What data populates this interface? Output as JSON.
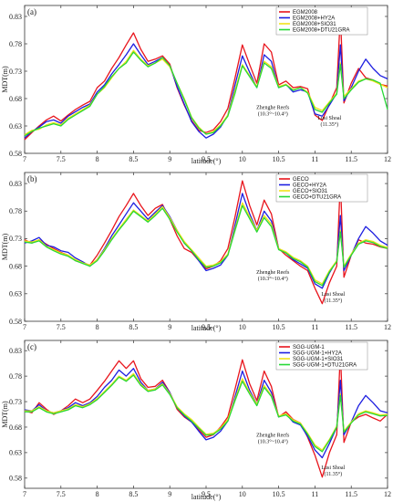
{
  "xlabel": "latitude(°)",
  "ylabel": "MDT(m)",
  "x_ticks": [
    "7",
    "7.5",
    "8",
    "8.5",
    "9",
    "9.5",
    "10",
    "10.5",
    "11",
    "11.5",
    "12"
  ],
  "y_ticks": [
    "0.58",
    "0.63",
    "0.68",
    "0.73",
    "0.78",
    "0.83"
  ],
  "colors": {
    "red": "#e8141c",
    "blue": "#1d1ee0",
    "yellow": "#f2e21a",
    "green": "#26d836"
  },
  "chart_data": [
    {
      "type": "line",
      "panel": "(a)",
      "xlabel": "latitude(°)",
      "ylabel": "MDT(m)",
      "xlim": [
        7,
        12
      ],
      "ylim": [
        0.58,
        0.85
      ],
      "grid": false,
      "legend_position": "top-right",
      "annotations": [
        {
          "text": "Zhenghe Reefs",
          "text2": "(10.3°~10.4°)",
          "x": 10.42,
          "y": 0.661
        },
        {
          "text": "Lusi Shoal",
          "text2": "(11.35°)",
          "x": 11.2,
          "y": 0.642
        }
      ],
      "x": [
        7.0,
        7.1,
        7.2,
        7.3,
        7.4,
        7.5,
        7.6,
        7.7,
        7.8,
        7.9,
        8.0,
        8.1,
        8.2,
        8.3,
        8.4,
        8.5,
        8.6,
        8.7,
        8.8,
        8.9,
        9.0,
        9.1,
        9.2,
        9.3,
        9.4,
        9.5,
        9.6,
        9.7,
        9.8,
        9.9,
        10.0,
        10.1,
        10.2,
        10.3,
        10.4,
        10.5,
        10.6,
        10.7,
        10.8,
        10.9,
        11.0,
        11.1,
        11.2,
        11.3,
        11.35,
        11.4,
        11.5,
        11.6,
        11.7,
        11.8,
        11.9,
        12.0
      ],
      "series": [
        {
          "name": "EGM2008",
          "color": "#e8141c",
          "values": [
            0.605,
            0.618,
            0.63,
            0.641,
            0.648,
            0.639,
            0.65,
            0.66,
            0.668,
            0.675,
            0.7,
            0.712,
            0.735,
            0.755,
            0.778,
            0.8,
            0.77,
            0.748,
            0.752,
            0.758,
            0.743,
            0.7,
            0.668,
            0.64,
            0.622,
            0.618,
            0.623,
            0.638,
            0.662,
            0.718,
            0.778,
            0.742,
            0.708,
            0.78,
            0.765,
            0.705,
            0.712,
            0.7,
            0.702,
            0.698,
            0.65,
            0.64,
            0.67,
            0.7,
            0.832,
            0.672,
            0.708,
            0.735,
            0.718,
            0.714,
            0.706,
            0.703
          ]
        },
        {
          "name": "EGM2008+HY2A",
          "color": "#1d1ee0",
          "values": [
            0.608,
            0.62,
            0.628,
            0.638,
            0.641,
            0.635,
            0.648,
            0.656,
            0.664,
            0.67,
            0.692,
            0.705,
            0.725,
            0.742,
            0.76,
            0.78,
            0.76,
            0.742,
            0.748,
            0.755,
            0.74,
            0.702,
            0.67,
            0.638,
            0.62,
            0.608,
            0.615,
            0.628,
            0.65,
            0.705,
            0.758,
            0.728,
            0.7,
            0.76,
            0.748,
            0.7,
            0.706,
            0.692,
            0.696,
            0.692,
            0.652,
            0.648,
            0.668,
            0.69,
            0.778,
            0.676,
            0.7,
            0.73,
            0.752,
            0.735,
            0.722,
            0.716
          ]
        },
        {
          "name": "EGM2008+SIO31",
          "color": "#f2e21a",
          "values": [
            0.614,
            0.622,
            0.624,
            0.632,
            0.636,
            0.632,
            0.644,
            0.652,
            0.66,
            0.668,
            0.688,
            0.7,
            0.718,
            0.735,
            0.748,
            0.768,
            0.752,
            0.74,
            0.745,
            0.752,
            0.738,
            0.708,
            0.68,
            0.646,
            0.628,
            0.615,
            0.62,
            0.632,
            0.65,
            0.695,
            0.742,
            0.722,
            0.702,
            0.748,
            0.738,
            0.702,
            0.706,
            0.696,
            0.7,
            0.692,
            0.664,
            0.658,
            0.674,
            0.69,
            0.745,
            0.684,
            0.698,
            0.712,
            0.716,
            0.712,
            0.706,
            0.7
          ]
        },
        {
          "name": "EGM2008+DTU21GRA",
          "color": "#26d836",
          "values": [
            0.612,
            0.62,
            0.626,
            0.63,
            0.634,
            0.63,
            0.642,
            0.65,
            0.658,
            0.666,
            0.688,
            0.702,
            0.72,
            0.735,
            0.745,
            0.765,
            0.75,
            0.738,
            0.745,
            0.755,
            0.74,
            0.708,
            0.678,
            0.645,
            0.626,
            0.615,
            0.618,
            0.63,
            0.648,
            0.69,
            0.74,
            0.72,
            0.7,
            0.745,
            0.735,
            0.7,
            0.705,
            0.695,
            0.7,
            0.69,
            0.66,
            0.655,
            0.672,
            0.688,
            0.742,
            0.68,
            0.696,
            0.71,
            0.716,
            0.714,
            0.708,
            0.66
          ]
        }
      ]
    },
    {
      "type": "line",
      "panel": "(b)",
      "xlabel": "latitude(°)",
      "ylabel": "MDT(m)",
      "xlim": [
        7,
        12
      ],
      "ylim": [
        0.58,
        0.85
      ],
      "grid": false,
      "legend_position": "top-right",
      "annotations": [
        {
          "text": "Zhenghe Reefs",
          "text2": "(10.3°~10.4°)",
          "x": 10.42,
          "y": 0.666
        },
        {
          "text": "Lusi Shoal",
          "text2": "(11.35°)",
          "x": 11.25,
          "y": 0.626
        }
      ],
      "x": [
        7.0,
        7.1,
        7.2,
        7.3,
        7.4,
        7.5,
        7.6,
        7.7,
        7.8,
        7.9,
        8.0,
        8.1,
        8.2,
        8.3,
        8.4,
        8.5,
        8.6,
        8.7,
        8.8,
        8.9,
        9.0,
        9.1,
        9.2,
        9.3,
        9.4,
        9.5,
        9.6,
        9.7,
        9.8,
        9.9,
        10.0,
        10.1,
        10.2,
        10.3,
        10.4,
        10.5,
        10.6,
        10.7,
        10.8,
        10.9,
        11.0,
        11.1,
        11.2,
        11.3,
        11.35,
        11.4,
        11.5,
        11.6,
        11.7,
        11.8,
        11.9,
        12.0
      ],
      "series": [
        {
          "name": "GECO",
          "color": "#e8141c",
          "values": [
            0.728,
            0.722,
            0.728,
            0.72,
            0.712,
            0.705,
            0.7,
            0.69,
            0.686,
            0.682,
            0.7,
            0.722,
            0.745,
            0.77,
            0.79,
            0.812,
            0.79,
            0.772,
            0.785,
            0.792,
            0.765,
            0.735,
            0.712,
            0.705,
            0.69,
            0.675,
            0.68,
            0.69,
            0.712,
            0.77,
            0.835,
            0.79,
            0.755,
            0.8,
            0.775,
            0.712,
            0.7,
            0.69,
            0.68,
            0.672,
            0.64,
            0.612,
            0.65,
            0.68,
            0.835,
            0.66,
            0.7,
            0.728,
            0.722,
            0.72,
            0.715,
            0.712
          ]
        },
        {
          "name": "GECO+HY2A",
          "color": "#1d1ee0",
          "values": [
            0.722,
            0.726,
            0.732,
            0.718,
            0.715,
            0.708,
            0.705,
            0.695,
            0.688,
            0.68,
            0.692,
            0.712,
            0.735,
            0.755,
            0.775,
            0.795,
            0.78,
            0.765,
            0.778,
            0.79,
            0.77,
            0.745,
            0.722,
            0.708,
            0.69,
            0.672,
            0.676,
            0.682,
            0.7,
            0.755,
            0.812,
            0.775,
            0.745,
            0.78,
            0.762,
            0.712,
            0.704,
            0.692,
            0.684,
            0.676,
            0.648,
            0.64,
            0.668,
            0.69,
            0.772,
            0.672,
            0.7,
            0.73,
            0.752,
            0.74,
            0.726,
            0.718
          ]
        },
        {
          "name": "GECO+SIO31",
          "color": "#f2e21a",
          "values": [
            0.726,
            0.724,
            0.728,
            0.716,
            0.71,
            0.704,
            0.7,
            0.692,
            0.686,
            0.682,
            0.692,
            0.71,
            0.73,
            0.748,
            0.765,
            0.782,
            0.772,
            0.762,
            0.775,
            0.788,
            0.768,
            0.745,
            0.725,
            0.71,
            0.695,
            0.68,
            0.682,
            0.688,
            0.702,
            0.748,
            0.795,
            0.77,
            0.745,
            0.772,
            0.756,
            0.712,
            0.706,
            0.696,
            0.69,
            0.68,
            0.655,
            0.648,
            0.672,
            0.69,
            0.745,
            0.68,
            0.702,
            0.722,
            0.728,
            0.725,
            0.718,
            0.714
          ]
        },
        {
          "name": "GECO+DTU21GRA",
          "color": "#26d836",
          "values": [
            0.724,
            0.722,
            0.726,
            0.715,
            0.708,
            0.702,
            0.698,
            0.69,
            0.685,
            0.68,
            0.69,
            0.708,
            0.728,
            0.746,
            0.762,
            0.78,
            0.77,
            0.76,
            0.772,
            0.785,
            0.765,
            0.742,
            0.722,
            0.708,
            0.692,
            0.678,
            0.68,
            0.686,
            0.7,
            0.745,
            0.79,
            0.766,
            0.742,
            0.768,
            0.752,
            0.71,
            0.704,
            0.694,
            0.688,
            0.678,
            0.652,
            0.645,
            0.67,
            0.688,
            0.742,
            0.678,
            0.7,
            0.72,
            0.726,
            0.723,
            0.716,
            0.712
          ]
        }
      ]
    },
    {
      "type": "line",
      "panel": "(c)",
      "xlabel": "latitude(°)",
      "ylabel": "MDT(m)",
      "xlim": [
        7,
        12
      ],
      "ylim": [
        0.56,
        0.85
      ],
      "grid": false,
      "legend_position": "top-right",
      "annotations": [
        {
          "text": "Zhenghe Reefs",
          "text2": "(10.3°~10.4°)",
          "x": 10.42,
          "y": 0.661
        },
        {
          "text": "Lusi Shoal",
          "text2": "(11.35°)",
          "x": 11.25,
          "y": 0.598
        }
      ],
      "x": [
        7.0,
        7.1,
        7.2,
        7.3,
        7.4,
        7.5,
        7.6,
        7.7,
        7.8,
        7.9,
        8.0,
        8.1,
        8.2,
        8.3,
        8.4,
        8.5,
        8.6,
        8.7,
        8.8,
        8.9,
        9.0,
        9.1,
        9.2,
        9.3,
        9.4,
        9.5,
        9.6,
        9.7,
        9.8,
        9.9,
        10.0,
        10.1,
        10.2,
        10.3,
        10.4,
        10.5,
        10.6,
        10.7,
        10.8,
        10.9,
        11.0,
        11.1,
        11.2,
        11.3,
        11.35,
        11.4,
        11.5,
        11.6,
        11.7,
        11.8,
        11.9,
        12.0
      ],
      "series": [
        {
          "name": "SGG-UGM-1",
          "color": "#e8141c",
          "values": [
            0.712,
            0.708,
            0.728,
            0.715,
            0.705,
            0.712,
            0.722,
            0.735,
            0.728,
            0.735,
            0.752,
            0.77,
            0.79,
            0.81,
            0.795,
            0.81,
            0.775,
            0.758,
            0.76,
            0.772,
            0.748,
            0.715,
            0.7,
            0.69,
            0.675,
            0.66,
            0.665,
            0.68,
            0.7,
            0.755,
            0.812,
            0.765,
            0.732,
            0.79,
            0.76,
            0.7,
            0.71,
            0.695,
            0.688,
            0.66,
            0.625,
            0.582,
            0.63,
            0.665,
            0.826,
            0.65,
            0.69,
            0.7,
            0.705,
            0.698,
            0.692,
            0.705
          ]
        },
        {
          "name": "SGG-UGM-1+HY2A",
          "color": "#1d1ee0",
          "values": [
            0.714,
            0.712,
            0.724,
            0.712,
            0.708,
            0.712,
            0.718,
            0.728,
            0.722,
            0.728,
            0.74,
            0.758,
            0.772,
            0.792,
            0.78,
            0.795,
            0.768,
            0.752,
            0.755,
            0.768,
            0.748,
            0.718,
            0.702,
            0.69,
            0.672,
            0.655,
            0.66,
            0.672,
            0.692,
            0.74,
            0.79,
            0.752,
            0.725,
            0.772,
            0.748,
            0.7,
            0.706,
            0.69,
            0.684,
            0.662,
            0.635,
            0.62,
            0.648,
            0.68,
            0.772,
            0.665,
            0.69,
            0.722,
            0.742,
            0.728,
            0.712,
            0.708
          ]
        },
        {
          "name": "SGG-UGM-1+SIO31",
          "color": "#f2e21a",
          "values": [
            0.712,
            0.712,
            0.72,
            0.712,
            0.708,
            0.712,
            0.716,
            0.724,
            0.72,
            0.726,
            0.736,
            0.75,
            0.764,
            0.78,
            0.772,
            0.785,
            0.764,
            0.752,
            0.755,
            0.765,
            0.746,
            0.72,
            0.706,
            0.695,
            0.68,
            0.666,
            0.668,
            0.678,
            0.695,
            0.735,
            0.775,
            0.748,
            0.725,
            0.762,
            0.742,
            0.702,
            0.706,
            0.694,
            0.688,
            0.668,
            0.645,
            0.635,
            0.656,
            0.682,
            0.745,
            0.672,
            0.69,
            0.706,
            0.712,
            0.708,
            0.704,
            0.705
          ]
        },
        {
          "name": "SGG-UGM-1+DTU21GRA",
          "color": "#26d836",
          "values": [
            0.71,
            0.71,
            0.718,
            0.71,
            0.706,
            0.71,
            0.714,
            0.722,
            0.718,
            0.724,
            0.734,
            0.748,
            0.762,
            0.778,
            0.77,
            0.782,
            0.762,
            0.75,
            0.753,
            0.763,
            0.744,
            0.718,
            0.704,
            0.692,
            0.678,
            0.664,
            0.666,
            0.676,
            0.692,
            0.732,
            0.77,
            0.745,
            0.722,
            0.758,
            0.74,
            0.7,
            0.704,
            0.692,
            0.686,
            0.666,
            0.642,
            0.632,
            0.654,
            0.68,
            0.742,
            0.67,
            0.688,
            0.704,
            0.71,
            0.706,
            0.702,
            0.703
          ]
        }
      ]
    }
  ]
}
